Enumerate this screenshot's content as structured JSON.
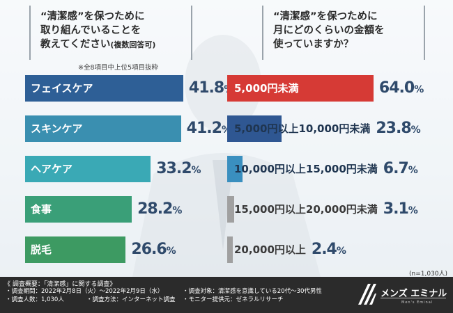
{
  "question1": {
    "text": "“清潔感”を保つために\n取り組んでいることを\n教えてください",
    "note": "(複数回答可)",
    "excerpt_note": "※全8項目中上位5項目抜粋"
  },
  "question2": {
    "text": "“清潔感”を保つために\n月にどのくらいの金額を\n使っていますか？"
  },
  "sample_note": "(n=1,030人)",
  "colors": {
    "left_bars": [
      "#2e5f96",
      "#3a8fb0",
      "#3aa9b5",
      "#3a9f78",
      "#3d9a62"
    ],
    "right_bars": [
      "#d63a35",
      "#2f5792",
      "#3a8fbf",
      "#a0a0a0",
      "#a0a0a0"
    ],
    "value_text": "#2f4a6b",
    "footer_bg": "#2b2b2b"
  },
  "chart_data": [
    {
      "type": "bar",
      "orientation": "horizontal",
      "categories": [
        "フェイスケア",
        "スキンケア",
        "ヘアケア",
        "食事",
        "脱毛"
      ],
      "values": [
        41.8,
        41.2,
        33.2,
        28.2,
        26.6
      ],
      "value_labels": [
        "41.8",
        "41.2",
        "33.2",
        "28.2",
        "26.6"
      ],
      "unit": "%",
      "xlim": [
        0,
        70
      ]
    },
    {
      "type": "bar",
      "orientation": "horizontal",
      "categories": [
        "5,000円未満",
        "5,000円以上10,000円未満",
        "10,000円以上15,000円未満",
        "15,000円以上20,000円未満",
        "20,000円以上"
      ],
      "values": [
        64.0,
        23.8,
        6.7,
        3.1,
        2.4
      ],
      "value_labels": [
        "64.0",
        "23.8",
        "6.7",
        "3.1",
        "2.4"
      ],
      "unit": "%",
      "xlim": [
        0,
        100
      ]
    }
  ],
  "footer": {
    "title": "《 調査概要：「清潔感」に関する調査》",
    "items": [
      "・調査期間：2022年2月8日（火）～2022年2月9日（水）",
      "・調査対象：清潔感を意識している20代～30代男性",
      "・調査人数：1,030人",
      "・調査方法：インターネット調査",
      "・モニター提供元：ゼネラルリサーチ"
    ],
    "logo_text": "メンズ エミナル",
    "logo_sub": "Men's Eminal"
  }
}
